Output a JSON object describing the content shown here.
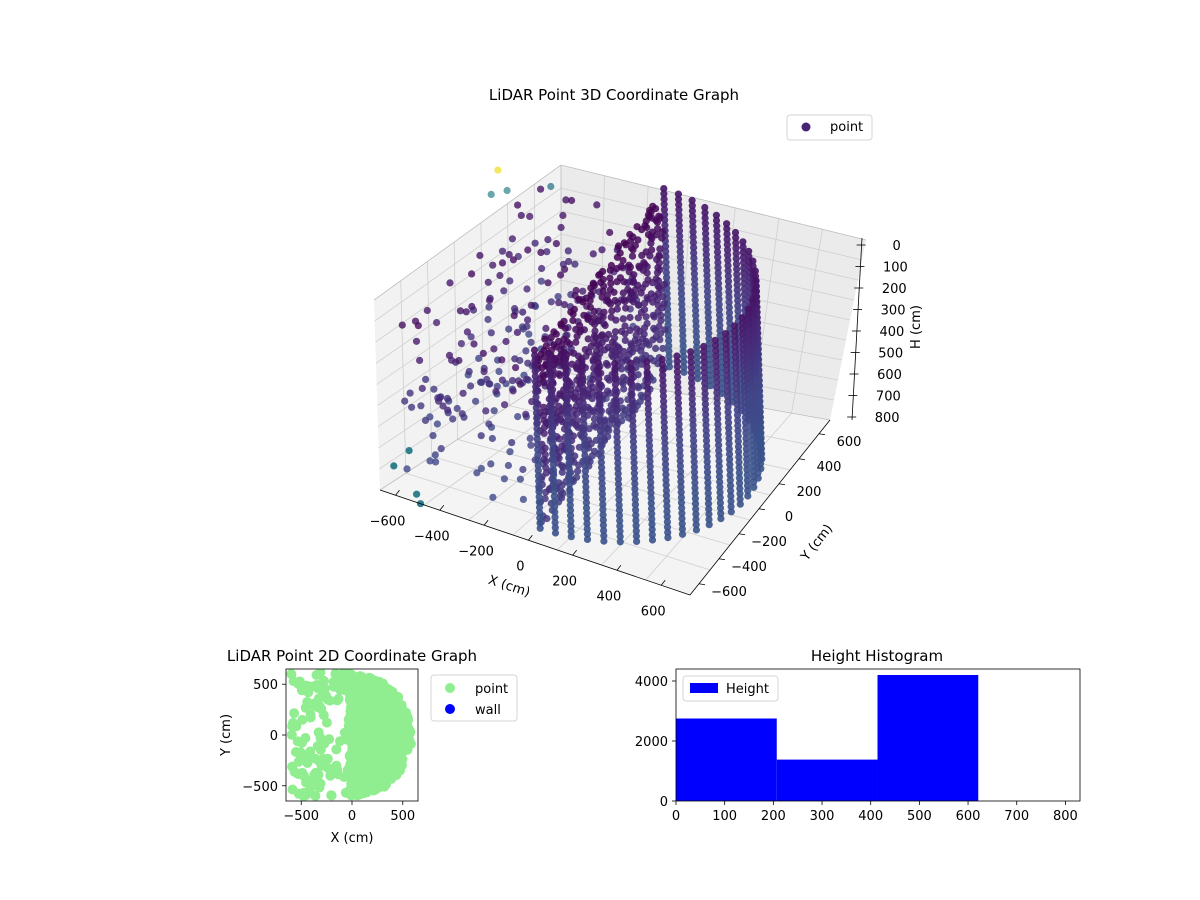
{
  "chart_data": [
    {
      "type": "scatter",
      "title": "LiDAR Point 3D Coordinate Graph",
      "xlabel": "X (cm)",
      "ylabel": "Y (cm)",
      "zlabel": "H (cm)",
      "xlim": [
        -650,
        650
      ],
      "ylim": [
        -650,
        650
      ],
      "zlim": [
        850,
        -20
      ],
      "x_ticks": [
        "−600",
        "−400",
        "−200",
        "0",
        "200",
        "400",
        "600"
      ],
      "y_ticks": [
        "−600",
        "−400",
        "−200",
        "0",
        "200",
        "400",
        "600"
      ],
      "z_ticks": [
        "0",
        "100",
        "200",
        "300",
        "400",
        "500",
        "600",
        "700",
        "800"
      ],
      "colormap": "viridis",
      "legend": {
        "position": "top-right",
        "entries": [
          {
            "label": "point",
            "color": "#482475"
          }
        ]
      },
      "grid": true
    },
    {
      "type": "scatter",
      "title": "LiDAR Point 2D Coordinate Graph",
      "xlabel": "X (cm)",
      "ylabel": "Y (cm)",
      "xlim": [
        -650,
        650
      ],
      "ylim": [
        -650,
        650
      ],
      "x_ticks": [
        "−500",
        "0",
        "500"
      ],
      "y_ticks": [
        "−500",
        "0",
        "500"
      ],
      "series": [
        {
          "name": "point",
          "color": "#90ee90"
        },
        {
          "name": "wall",
          "color": "#0000ff"
        }
      ],
      "legend": {
        "position": "outside-right",
        "entries": [
          {
            "label": "point",
            "color": "#90ee90"
          },
          {
            "label": "wall",
            "color": "#0000ff"
          }
        ]
      }
    },
    {
      "type": "bar",
      "title": "Height Histogram",
      "bins": [
        [
          0,
          207
        ],
        [
          207,
          414
        ],
        [
          414,
          621
        ],
        [
          621,
          828
        ]
      ],
      "values": [
        2750,
        1380,
        4200,
        0
      ],
      "xlim": [
        0,
        830
      ],
      "ylim": [
        0,
        4400
      ],
      "x_ticks": [
        "0",
        "100",
        "200",
        "300",
        "400",
        "500",
        "600",
        "700",
        "800"
      ],
      "y_ticks": [
        "0",
        "2000",
        "4000"
      ],
      "color": "#0000ff",
      "legend": {
        "position": "top-left",
        "entries": [
          {
            "label": "Height",
            "color": "#0000ff"
          }
        ]
      }
    }
  ]
}
